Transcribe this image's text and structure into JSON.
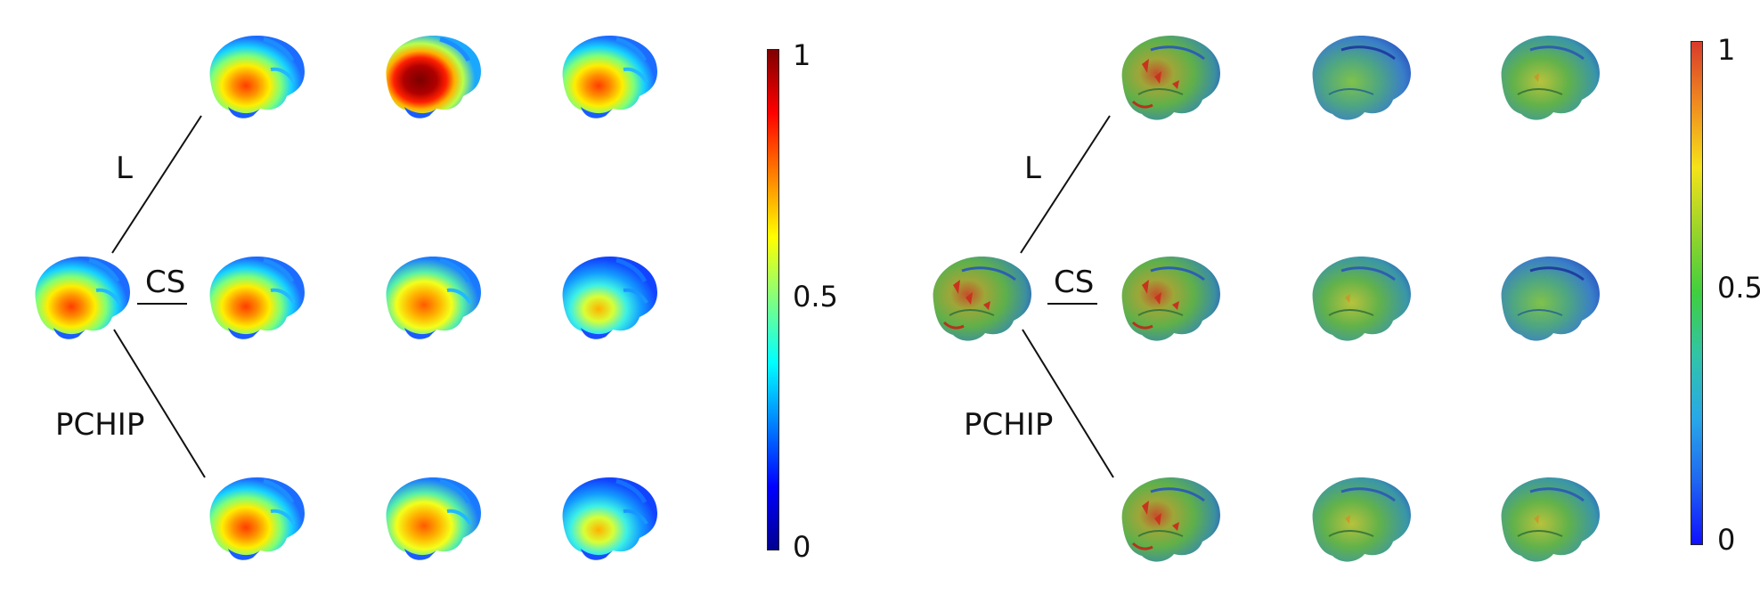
{
  "panels": [
    {
      "id": "left",
      "branch_labels": {
        "top": "L",
        "middle": "CS",
        "bottom": "PCHIP"
      },
      "colorbar": {
        "max": "1",
        "mid": "0.5",
        "min": "0",
        "colors": [
          "#7f0000",
          "#ff0000",
          "#ff8000",
          "#ffff00",
          "#80ff80",
          "#00ffff",
          "#0080ff",
          "#0000ff",
          "#00008f"
        ]
      },
      "style": "jet-smooth"
    },
    {
      "id": "right",
      "branch_labels": {
        "top": "L",
        "middle": "CS",
        "bottom": "PCHIP"
      },
      "colorbar": {
        "max": "1",
        "mid": "0.5",
        "min": "0",
        "colors": [
          "#d93b2b",
          "#f08c1f",
          "#f5e21a",
          "#9ad42a",
          "#3fcf3f",
          "#31c4a8",
          "#28a8e8",
          "#1f66f0",
          "#1010ff"
        ]
      },
      "style": "surface-green"
    }
  ]
}
